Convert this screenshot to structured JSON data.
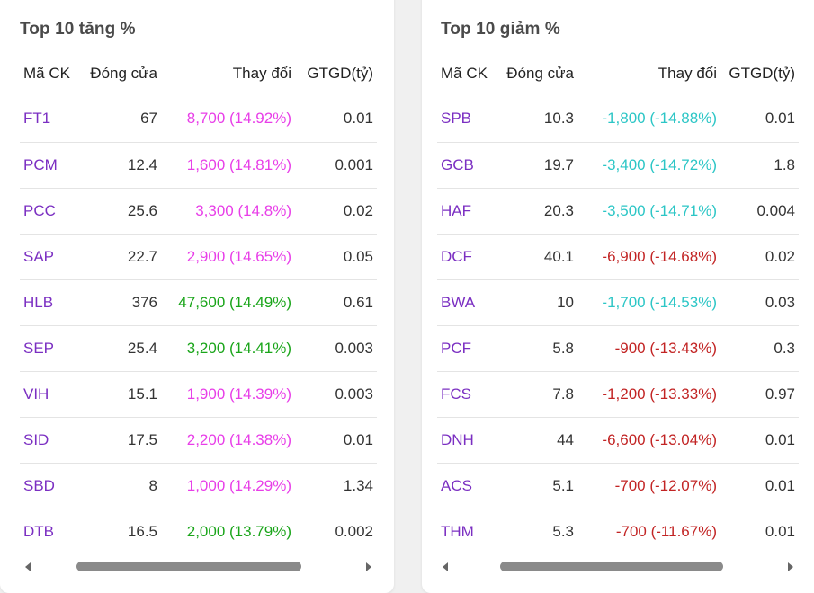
{
  "colors": {
    "symbol": "#7b2fc2",
    "ceiling": "#e83ee8",
    "up": "#1aa51a",
    "floor": "#2cc6c6",
    "down": "#c22424"
  },
  "gainers": {
    "title": "Top 10 tăng %",
    "headers": [
      "Mã CK",
      "Đóng cửa",
      "Thay đổi",
      "GTGD(tỷ)"
    ],
    "rows": [
      {
        "sym": "FT1",
        "close": "67",
        "change": "8,700 (14.92%)",
        "color": "#e83ee8",
        "value": "0.01"
      },
      {
        "sym": "PCM",
        "close": "12.4",
        "change": "1,600 (14.81%)",
        "color": "#e83ee8",
        "value": "0.001"
      },
      {
        "sym": "PCC",
        "close": "25.6",
        "change": "3,300 (14.8%)",
        "color": "#e83ee8",
        "value": "0.02"
      },
      {
        "sym": "SAP",
        "close": "22.7",
        "change": "2,900 (14.65%)",
        "color": "#e83ee8",
        "value": "0.05"
      },
      {
        "sym": "HLB",
        "close": "376",
        "change": "47,600 (14.49%)",
        "color": "#1aa51a",
        "value": "0.61"
      },
      {
        "sym": "SEP",
        "close": "25.4",
        "change": "3,200 (14.41%)",
        "color": "#1aa51a",
        "value": "0.003"
      },
      {
        "sym": "VIH",
        "close": "15.1",
        "change": "1,900 (14.39%)",
        "color": "#e83ee8",
        "value": "0.003"
      },
      {
        "sym": "SID",
        "close": "17.5",
        "change": "2,200 (14.38%)",
        "color": "#e83ee8",
        "value": "0.01"
      },
      {
        "sym": "SBD",
        "close": "8",
        "change": "1,000 (14.29%)",
        "color": "#e83ee8",
        "value": "1.34"
      },
      {
        "sym": "DTB",
        "close": "16.5",
        "change": "2,000 (13.79%)",
        "color": "#1aa51a",
        "value": "0.002"
      }
    ]
  },
  "losers": {
    "title": "Top 10 giảm %",
    "headers": [
      "Mã CK",
      "Đóng cửa",
      "Thay đổi",
      "GTGD(tỷ)"
    ],
    "rows": [
      {
        "sym": "SPB",
        "close": "10.3",
        "change": "-1,800 (-14.88%)",
        "color": "#2cc6c6",
        "value": "0.01"
      },
      {
        "sym": "GCB",
        "close": "19.7",
        "change": "-3,400 (-14.72%)",
        "color": "#2cc6c6",
        "value": "1.8"
      },
      {
        "sym": "HAF",
        "close": "20.3",
        "change": "-3,500 (-14.71%)",
        "color": "#2cc6c6",
        "value": "0.004"
      },
      {
        "sym": "DCF",
        "close": "40.1",
        "change": "-6,900 (-14.68%)",
        "color": "#c22424",
        "value": "0.02"
      },
      {
        "sym": "BWA",
        "close": "10",
        "change": "-1,700 (-14.53%)",
        "color": "#2cc6c6",
        "value": "0.03"
      },
      {
        "sym": "PCF",
        "close": "5.8",
        "change": "-900 (-13.43%)",
        "color": "#c22424",
        "value": "0.3"
      },
      {
        "sym": "FCS",
        "close": "7.8",
        "change": "-1,200 (-13.33%)",
        "color": "#c22424",
        "value": "0.97"
      },
      {
        "sym": "DNH",
        "close": "44",
        "change": "-6,600 (-13.04%)",
        "color": "#c22424",
        "value": "0.01"
      },
      {
        "sym": "ACS",
        "close": "5.1",
        "change": "-700 (-12.07%)",
        "color": "#c22424",
        "value": "0.01"
      },
      {
        "sym": "THM",
        "close": "5.3",
        "change": "-700 (-11.67%)",
        "color": "#c22424",
        "value": "0.01"
      }
    ]
  }
}
